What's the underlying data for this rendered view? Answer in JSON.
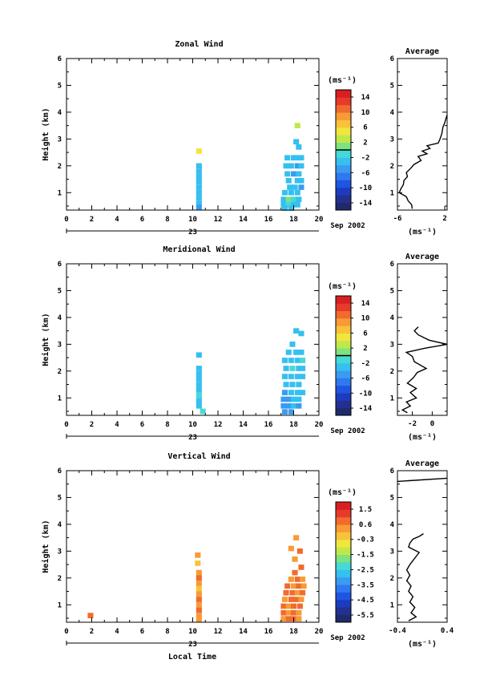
{
  "x_axis": {
    "ticks": [
      "0",
      "2",
      "4",
      "6",
      "8",
      "10",
      "12",
      "14",
      "16",
      "18",
      "20"
    ],
    "date_day": "23",
    "date_label": "Sep 2002",
    "xlabel": "Local Time"
  },
  "panels": [
    {
      "title": "Zonal Wind",
      "ylabel": "Height (km)",
      "y_ticks": [
        "1",
        "2",
        "3",
        "4",
        "5",
        "6"
      ],
      "ylim": [
        0.35,
        6
      ],
      "xlim": [
        0,
        20
      ],
      "colorbar": {
        "unit": "(ms⁻¹)",
        "labels": [
          "14",
          "10",
          "6",
          "2",
          "-2",
          "-6",
          "-10",
          "-14"
        ],
        "min": -16,
        "max": 16,
        "contour_level": 0
      },
      "average": {
        "title": "Average",
        "xlim": [
          -6,
          2.4
        ],
        "x_ticks": [
          "-6",
          "2"
        ],
        "unit": "(ms⁻¹)"
      }
    },
    {
      "title": "Meridional Wind",
      "ylabel": "Height (km)",
      "y_ticks": [
        "1",
        "2",
        "3",
        "4",
        "5",
        "6"
      ],
      "ylim": [
        0.35,
        6
      ],
      "xlim": [
        0,
        20
      ],
      "colorbar": {
        "unit": "(ms⁻¹)",
        "labels": [
          "14",
          "10",
          "6",
          "2",
          "-2",
          "-6",
          "-10",
          "-14"
        ],
        "min": -16,
        "max": 16,
        "contour_level": 0
      },
      "average": {
        "title": "Average",
        "xlim": [
          -3.5,
          1.5
        ],
        "x_ticks": [
          "-2",
          "0"
        ],
        "unit": "(ms⁻¹)"
      }
    },
    {
      "title": "Vertical Wind",
      "ylabel": "Height (km)",
      "y_ticks": [
        "1",
        "2",
        "3",
        "4",
        "5",
        "6"
      ],
      "ylim": [
        0.35,
        6
      ],
      "xlim": [
        0,
        20
      ],
      "colorbar": {
        "unit": "(ms⁻¹)",
        "labels": [
          "1.5",
          "0.6",
          "-0.3",
          "-1.5",
          "-2.5",
          "-3.5",
          "-4.5",
          "-5.5"
        ],
        "min": -6,
        "max": 2,
        "contour_level": null
      },
      "average": {
        "title": "Average",
        "xlim": [
          -0.4,
          0.4
        ],
        "x_ticks": [
          "-0.4",
          "0.4"
        ],
        "unit": "(ms⁻¹)"
      }
    }
  ],
  "chart_data": [
    {
      "type": "heatmap",
      "title": "Zonal Wind",
      "xlabel": "",
      "ylabel": "Height (km)",
      "xlim": [
        0,
        20
      ],
      "ylim": [
        0.35,
        6
      ],
      "cells": [
        {
          "x": 10.5,
          "y": 2.55,
          "v": 4
        },
        {
          "x": 10.5,
          "y": 2.0,
          "v": -3
        },
        {
          "x": 10.5,
          "y": 1.8,
          "v": -3
        },
        {
          "x": 10.5,
          "y": 1.6,
          "v": -4
        },
        {
          "x": 10.5,
          "y": 1.4,
          "v": -3
        },
        {
          "x": 10.5,
          "y": 1.2,
          "v": -4
        },
        {
          "x": 10.5,
          "y": 1.0,
          "v": -3
        },
        {
          "x": 10.5,
          "y": 0.8,
          "v": -3
        },
        {
          "x": 10.5,
          "y": 0.6,
          "v": -4
        },
        {
          "x": 10.5,
          "y": 0.45,
          "v": -5
        },
        {
          "x": 18.3,
          "y": 3.5,
          "v": 3
        },
        {
          "x": 18.2,
          "y": 2.9,
          "v": -3
        },
        {
          "x": 18.4,
          "y": 2.7,
          "v": -4
        },
        {
          "x": 17.5,
          "y": 2.3,
          "v": -4
        },
        {
          "x": 18.0,
          "y": 2.3,
          "v": -3
        },
        {
          "x": 18.3,
          "y": 2.3,
          "v": -4
        },
        {
          "x": 18.6,
          "y": 2.3,
          "v": -4
        },
        {
          "x": 17.4,
          "y": 2.0,
          "v": -4
        },
        {
          "x": 17.8,
          "y": 2.0,
          "v": -3
        },
        {
          "x": 18.3,
          "y": 2.0,
          "v": -5
        },
        {
          "x": 18.6,
          "y": 2.0,
          "v": -4
        },
        {
          "x": 17.5,
          "y": 1.7,
          "v": -3
        },
        {
          "x": 18.0,
          "y": 1.7,
          "v": -5
        },
        {
          "x": 18.4,
          "y": 1.7,
          "v": -4
        },
        {
          "x": 17.6,
          "y": 1.45,
          "v": -4
        },
        {
          "x": 18.3,
          "y": 1.45,
          "v": -3
        },
        {
          "x": 18.6,
          "y": 1.45,
          "v": -4
        },
        {
          "x": 17.7,
          "y": 1.2,
          "v": -3
        },
        {
          "x": 18.1,
          "y": 1.2,
          "v": -4
        },
        {
          "x": 18.6,
          "y": 1.2,
          "v": -5
        },
        {
          "x": 17.3,
          "y": 1.0,
          "v": -4
        },
        {
          "x": 17.8,
          "y": 1.0,
          "v": -3
        },
        {
          "x": 18.3,
          "y": 1.0,
          "v": -4
        },
        {
          "x": 17.2,
          "y": 0.75,
          "v": -3
        },
        {
          "x": 17.6,
          "y": 0.75,
          "v": 1
        },
        {
          "x": 18.0,
          "y": 0.75,
          "v": -2
        },
        {
          "x": 18.4,
          "y": 0.75,
          "v": -4
        },
        {
          "x": 17.2,
          "y": 0.55,
          "v": -4
        },
        {
          "x": 17.6,
          "y": 0.55,
          "v": -2
        },
        {
          "x": 18.0,
          "y": 0.55,
          "v": -3
        },
        {
          "x": 18.3,
          "y": 0.55,
          "v": -4
        },
        {
          "x": 17.3,
          "y": 0.42,
          "v": -3
        },
        {
          "x": 17.8,
          "y": 0.42,
          "v": -4
        }
      ],
      "average_profile": [
        [
          2.4,
          3.9
        ],
        [
          2.0,
          3.6
        ],
        [
          1.7,
          3.45
        ],
        [
          1.5,
          3.2
        ],
        [
          1.2,
          3.0
        ],
        [
          0.9,
          2.85
        ],
        [
          -1.0,
          2.75
        ],
        [
          -0.5,
          2.65
        ],
        [
          -1.8,
          2.55
        ],
        [
          -1.0,
          2.45
        ],
        [
          -2.5,
          2.35
        ],
        [
          -2.0,
          2.2
        ],
        [
          -3.2,
          2.05
        ],
        [
          -3.8,
          1.9
        ],
        [
          -4.5,
          1.75
        ],
        [
          -4.3,
          1.6
        ],
        [
          -4.9,
          1.45
        ],
        [
          -5.0,
          1.3
        ],
        [
          -5.4,
          1.15
        ],
        [
          -5.7,
          1.0
        ],
        [
          -4.5,
          0.85
        ],
        [
          -4.2,
          0.7
        ],
        [
          -3.6,
          0.55
        ],
        [
          -3.5,
          0.4
        ]
      ]
    },
    {
      "type": "heatmap",
      "title": "Meridional Wind",
      "xlabel": "",
      "ylabel": "Height (km)",
      "xlim": [
        0,
        20
      ],
      "ylim": [
        0.35,
        6
      ],
      "cells": [
        {
          "x": 10.5,
          "y": 2.6,
          "v": -4
        },
        {
          "x": 10.5,
          "y": 2.1,
          "v": -3
        },
        {
          "x": 10.5,
          "y": 1.9,
          "v": -4
        },
        {
          "x": 10.5,
          "y": 1.7,
          "v": -3
        },
        {
          "x": 10.5,
          "y": 1.5,
          "v": -4
        },
        {
          "x": 10.5,
          "y": 1.3,
          "v": -3
        },
        {
          "x": 10.5,
          "y": 1.1,
          "v": -2
        },
        {
          "x": 10.5,
          "y": 0.9,
          "v": -4
        },
        {
          "x": 10.5,
          "y": 0.7,
          "v": -3
        },
        {
          "x": 10.8,
          "y": 0.5,
          "v": -2
        },
        {
          "x": 18.2,
          "y": 3.5,
          "v": -4
        },
        {
          "x": 18.6,
          "y": 3.4,
          "v": -3
        },
        {
          "x": 17.9,
          "y": 3.0,
          "v": -3
        },
        {
          "x": 17.6,
          "y": 2.7,
          "v": -3
        },
        {
          "x": 18.2,
          "y": 2.7,
          "v": -4
        },
        {
          "x": 18.6,
          "y": 2.7,
          "v": -3
        },
        {
          "x": 17.3,
          "y": 2.4,
          "v": -3
        },
        {
          "x": 17.8,
          "y": 2.4,
          "v": -4
        },
        {
          "x": 18.3,
          "y": 2.4,
          "v": -3
        },
        {
          "x": 18.7,
          "y": 2.4,
          "v": -2
        },
        {
          "x": 17.4,
          "y": 2.1,
          "v": -4
        },
        {
          "x": 17.9,
          "y": 2.1,
          "v": -2
        },
        {
          "x": 18.4,
          "y": 2.1,
          "v": -3
        },
        {
          "x": 18.7,
          "y": 2.1,
          "v": -4
        },
        {
          "x": 17.3,
          "y": 1.8,
          "v": -3
        },
        {
          "x": 17.8,
          "y": 1.8,
          "v": -4
        },
        {
          "x": 18.3,
          "y": 1.8,
          "v": -3
        },
        {
          "x": 18.7,
          "y": 1.8,
          "v": -4
        },
        {
          "x": 17.4,
          "y": 1.5,
          "v": -4
        },
        {
          "x": 17.9,
          "y": 1.5,
          "v": -3
        },
        {
          "x": 18.4,
          "y": 1.5,
          "v": -4
        },
        {
          "x": 17.3,
          "y": 1.2,
          "v": -5
        },
        {
          "x": 17.8,
          "y": 1.2,
          "v": -4
        },
        {
          "x": 18.3,
          "y": 1.2,
          "v": -3
        },
        {
          "x": 18.7,
          "y": 1.2,
          "v": -4
        },
        {
          "x": 17.2,
          "y": 0.95,
          "v": -6
        },
        {
          "x": 17.6,
          "y": 0.95,
          "v": -5
        },
        {
          "x": 18.0,
          "y": 0.95,
          "v": -4
        },
        {
          "x": 18.4,
          "y": 0.95,
          "v": -3
        },
        {
          "x": 17.2,
          "y": 0.7,
          "v": -5
        },
        {
          "x": 17.6,
          "y": 0.7,
          "v": -6
        },
        {
          "x": 18.0,
          "y": 0.7,
          "v": -4
        },
        {
          "x": 18.4,
          "y": 0.7,
          "v": -5
        },
        {
          "x": 17.3,
          "y": 0.48,
          "v": -6
        },
        {
          "x": 17.8,
          "y": 0.48,
          "v": -5
        }
      ],
      "average_profile": [
        [
          -1.4,
          3.65
        ],
        [
          -1.8,
          3.5
        ],
        [
          -1.4,
          3.35
        ],
        [
          -0.3,
          3.15
        ],
        [
          1.5,
          3.0
        ],
        [
          -0.8,
          2.85
        ],
        [
          -2.6,
          2.7
        ],
        [
          -2.0,
          2.55
        ],
        [
          -1.8,
          2.35
        ],
        [
          -0.6,
          2.1
        ],
        [
          -1.5,
          1.95
        ],
        [
          -1.9,
          1.75
        ],
        [
          -2.5,
          1.55
        ],
        [
          -1.6,
          1.35
        ],
        [
          -2.2,
          1.2
        ],
        [
          -1.6,
          1.0
        ],
        [
          -2.6,
          0.85
        ],
        [
          -2.2,
          0.7
        ],
        [
          -3.0,
          0.55
        ],
        [
          -2.5,
          0.45
        ]
      ]
    },
    {
      "type": "heatmap",
      "title": "Vertical Wind",
      "xlabel": "Local Time",
      "ylabel": "Height (km)",
      "xlim": [
        0,
        20
      ],
      "ylim": [
        0.35,
        6
      ],
      "cells": [
        {
          "x": 1.9,
          "y": 0.6,
          "v": 0.6
        },
        {
          "x": 10.4,
          "y": 2.85,
          "v": 0.4
        },
        {
          "x": 10.4,
          "y": 2.55,
          "v": -0.2
        },
        {
          "x": 10.5,
          "y": 2.2,
          "v": 0.3
        },
        {
          "x": 10.5,
          "y": 2.0,
          "v": 0.6
        },
        {
          "x": 10.5,
          "y": 1.8,
          "v": 0.2
        },
        {
          "x": 10.5,
          "y": 1.6,
          "v": -0.5
        },
        {
          "x": 10.5,
          "y": 1.4,
          "v": 0.4
        },
        {
          "x": 10.5,
          "y": 1.2,
          "v": 0.6
        },
        {
          "x": 10.5,
          "y": 1.0,
          "v": 0.3
        },
        {
          "x": 10.5,
          "y": 0.8,
          "v": 0.5
        },
        {
          "x": 10.5,
          "y": 0.6,
          "v": 0.4
        },
        {
          "x": 10.5,
          "y": 0.45,
          "v": 0.2
        },
        {
          "x": 18.2,
          "y": 3.5,
          "v": 0.4
        },
        {
          "x": 17.8,
          "y": 3.1,
          "v": 0.3
        },
        {
          "x": 18.5,
          "y": 3.0,
          "v": 0.6
        },
        {
          "x": 18.1,
          "y": 2.7,
          "v": 0.4
        },
        {
          "x": 18.6,
          "y": 2.4,
          "v": 0.6
        },
        {
          "x": 18.1,
          "y": 2.2,
          "v": 0.5
        },
        {
          "x": 17.8,
          "y": 1.95,
          "v": 0.3
        },
        {
          "x": 18.3,
          "y": 1.95,
          "v": 0.6
        },
        {
          "x": 18.7,
          "y": 1.95,
          "v": 0.4
        },
        {
          "x": 17.5,
          "y": 1.7,
          "v": 0.6
        },
        {
          "x": 18.0,
          "y": 1.7,
          "v": 0.4
        },
        {
          "x": 18.4,
          "y": 1.7,
          "v": 0.5
        },
        {
          "x": 18.8,
          "y": 1.7,
          "v": 0.3
        },
        {
          "x": 17.4,
          "y": 1.45,
          "v": 0.5
        },
        {
          "x": 17.9,
          "y": 1.45,
          "v": 0.6
        },
        {
          "x": 18.3,
          "y": 1.45,
          "v": 0.4
        },
        {
          "x": 18.7,
          "y": 1.45,
          "v": 0.5
        },
        {
          "x": 17.3,
          "y": 1.2,
          "v": 0.4
        },
        {
          "x": 17.8,
          "y": 1.2,
          "v": 0.5
        },
        {
          "x": 18.2,
          "y": 1.2,
          "v": 0.6
        },
        {
          "x": 18.6,
          "y": 1.2,
          "v": 0.4
        },
        {
          "x": 17.2,
          "y": 0.95,
          "v": 0.5
        },
        {
          "x": 17.6,
          "y": 0.95,
          "v": 0.3
        },
        {
          "x": 18.0,
          "y": 0.95,
          "v": 0.6
        },
        {
          "x": 18.5,
          "y": 0.95,
          "v": 0.5
        },
        {
          "x": 17.2,
          "y": 0.7,
          "v": 0.6
        },
        {
          "x": 17.6,
          "y": 0.7,
          "v": 0.4
        },
        {
          "x": 18.0,
          "y": 0.7,
          "v": 0.5
        },
        {
          "x": 18.4,
          "y": 0.7,
          "v": 0.3
        },
        {
          "x": 17.2,
          "y": 0.48,
          "v": 0.4
        },
        {
          "x": 17.6,
          "y": 0.48,
          "v": 0.6
        },
        {
          "x": 18.0,
          "y": 0.48,
          "v": 0.5
        },
        {
          "x": 18.4,
          "y": 0.48,
          "v": 0.4
        }
      ],
      "average_profile": [
        [
          -0.4,
          5.6
        ],
        [
          0.4,
          5.72
        ]
      ],
      "average_profile_2": [
        [
          0.02,
          3.65
        ],
        [
          -0.05,
          3.55
        ],
        [
          -0.15,
          3.45
        ],
        [
          -0.2,
          3.3
        ],
        [
          -0.22,
          3.15
        ],
        [
          -0.05,
          2.95
        ],
        [
          -0.1,
          2.8
        ],
        [
          -0.15,
          2.65
        ],
        [
          -0.2,
          2.5
        ],
        [
          -0.25,
          2.3
        ],
        [
          -0.2,
          2.1
        ],
        [
          -0.25,
          1.9
        ],
        [
          -0.18,
          1.7
        ],
        [
          -0.22,
          1.5
        ],
        [
          -0.15,
          1.3
        ],
        [
          -0.2,
          1.1
        ],
        [
          -0.12,
          0.9
        ],
        [
          -0.18,
          0.7
        ],
        [
          -0.1,
          0.55
        ],
        [
          -0.22,
          0.4
        ]
      ]
    }
  ]
}
